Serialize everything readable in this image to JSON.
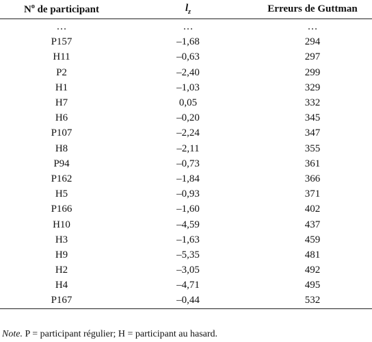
{
  "table": {
    "header": [
      {
        "main": "N",
        "sup": "o",
        "rest": "de participant"
      },
      {
        "main": "l",
        "sub": "z"
      },
      {
        "main": "Erreurs de Guttman"
      }
    ],
    "rows": [
      [
        "…",
        "…",
        "…"
      ],
      [
        "P157",
        "–1,68",
        "294"
      ],
      [
        "H11",
        "–0,63",
        "297"
      ],
      [
        "P2",
        "–2,40",
        "299"
      ],
      [
        "H1",
        "–1,03",
        "329"
      ],
      [
        "H7",
        "0,05",
        "332"
      ],
      [
        "H6",
        "–0,20",
        "345"
      ],
      [
        "P107",
        "–2,24",
        "347"
      ],
      [
        "H8",
        "–2,11",
        "355"
      ],
      [
        "P94",
        "–0,73",
        "361"
      ],
      [
        "P162",
        "–1,84",
        "366"
      ],
      [
        "H5",
        "–0,93",
        "371"
      ],
      [
        "P166",
        "–1,60",
        "402"
      ],
      [
        "H10",
        "–4,59",
        "437"
      ],
      [
        "H3",
        "–1,63",
        "459"
      ],
      [
        "H9",
        "–5,35",
        "481"
      ],
      [
        "H2",
        "–3,05",
        "492"
      ],
      [
        "H4",
        "–4,71",
        "495"
      ],
      [
        "P167",
        "–0,44",
        "532"
      ]
    ]
  },
  "note": {
    "label": "Note.",
    "text": "P = participant régulier; H = participant au hasard."
  }
}
